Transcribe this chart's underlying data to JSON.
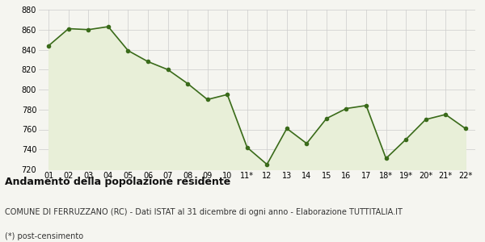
{
  "x_labels": [
    "01",
    "02",
    "03",
    "04",
    "05",
    "06",
    "07",
    "08",
    "09",
    "10",
    "11*",
    "12",
    "13",
    "14",
    "15",
    "16",
    "17",
    "18*",
    "19*",
    "20*",
    "21*",
    "22*"
  ],
  "y_values": [
    844,
    861,
    860,
    863,
    839,
    828,
    820,
    806,
    790,
    795,
    742,
    725,
    761,
    746,
    771,
    781,
    784,
    731,
    750,
    770,
    775,
    761
  ],
  "line_color": "#3a6b1a",
  "fill_color": "#e8efd8",
  "marker": "o",
  "marker_size": 3,
  "line_width": 1.2,
  "ylim": [
    720,
    880
  ],
  "yticks": [
    720,
    740,
    760,
    780,
    800,
    820,
    840,
    860,
    880
  ],
  "title": "Andamento della popolazione residente",
  "subtitle": "COMUNE DI FERRUZZANO (RC) - Dati ISTAT al 31 dicembre di ogni anno - Elaborazione TUTTITALIA.IT",
  "footnote": "(*) post-censimento",
  "background_color": "#f5f5f0",
  "plot_bg_color": "#f5f5f0",
  "grid_color": "#cccccc",
  "title_fontsize": 9,
  "subtitle_fontsize": 7,
  "footnote_fontsize": 7,
  "tick_fontsize": 7
}
